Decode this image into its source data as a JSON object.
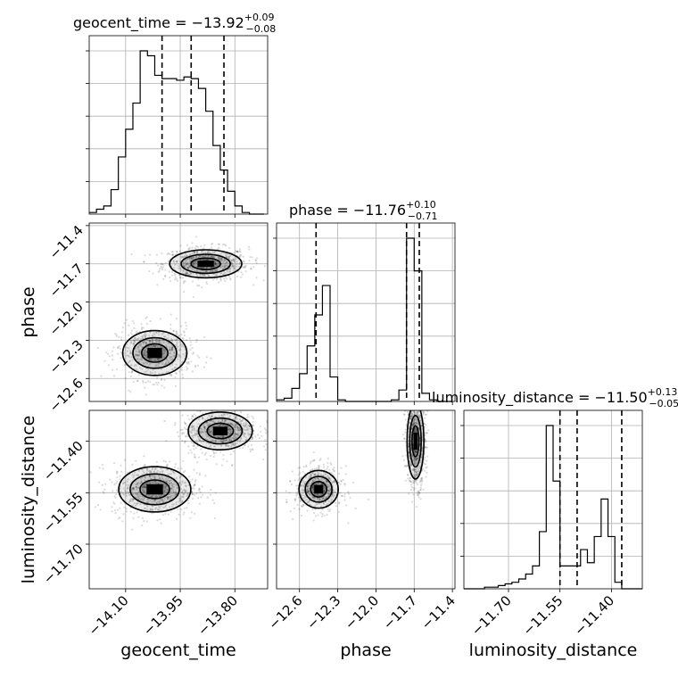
{
  "chart_data": {
    "type": "corner",
    "parameters": [
      "geocent_time",
      "phase",
      "luminosity_distance"
    ],
    "titles": [
      {
        "param": "geocent_time",
        "text": "geocent_time = −13.92",
        "plus": "+0.09",
        "minus": "−0.08"
      },
      {
        "param": "phase",
        "text": "phase = −11.76",
        "plus": "+0.10",
        "minus": "−0.71"
      },
      {
        "param": "luminosity_distance",
        "text": "luminosity_distance = −11.50",
        "plus": "+0.13",
        "minus": "−0.05"
      }
    ],
    "axes": {
      "geocent_time": {
        "range": [
          -14.2,
          -13.71
        ],
        "ticks": [
          -14.1,
          -13.95,
          -13.8
        ],
        "tick_labels": [
          "−14.10",
          "−13.95",
          "−13.80"
        ],
        "label": "geocent_time"
      },
      "phase": {
        "range": [
          -12.78,
          -11.38
        ],
        "ticks": [
          -12.6,
          -12.3,
          -12.0,
          -11.7,
          -11.4
        ],
        "tick_labels": [
          "−12.6",
          "−12.3",
          "−12.0",
          "−11.7",
          "−11.4"
        ],
        "label": "phase"
      },
      "luminosity_distance": {
        "range": [
          -11.83,
          -11.31
        ],
        "ticks": [
          -11.7,
          -11.55,
          -11.4
        ],
        "tick_labels": [
          "−11.70",
          "−11.55",
          "−11.40"
        ],
        "label": "luminosity_distance"
      }
    },
    "y_axes": {
      "phase": {
        "ticks": [
          -12.6,
          -12.3,
          -12.0,
          -11.7,
          -11.4
        ],
        "tick_labels": [
          "−12.6",
          "−12.3",
          "−12.0",
          "−11.7",
          "−11.4"
        ],
        "label": "phase"
      },
      "luminosity_distance": {
        "ticks": [
          -11.7,
          -11.55,
          -11.4
        ],
        "tick_labels": [
          "−11.70",
          "−11.55",
          "−11.40"
        ],
        "label": "luminosity_distance"
      }
    },
    "histograms": {
      "geocent_time": {
        "edges": [
          -14.2,
          -14.18,
          -14.16,
          -14.14,
          -14.12,
          -14.1,
          -14.08,
          -14.06,
          -14.04,
          -14.02,
          -14.0,
          -13.98,
          -13.96,
          -13.94,
          -13.92,
          -13.9,
          -13.88,
          -13.86,
          -13.84,
          -13.82,
          -13.8,
          -13.78,
          -13.76,
          -13.74,
          -13.72
        ],
        "counts": [
          1,
          3,
          5,
          15,
          35,
          52,
          68,
          100,
          97,
          85,
          83,
          83,
          82,
          84,
          83,
          77,
          63,
          42,
          27,
          14,
          5,
          1,
          0,
          0
        ],
        "quantiles": [
          -14.0,
          -13.92,
          -13.83
        ]
      },
      "phase": {
        "edges": [
          -12.78,
          -12.72,
          -12.66,
          -12.6,
          -12.54,
          -12.48,
          -12.42,
          -12.36,
          -12.3,
          -12.24,
          -12.18,
          -12.12,
          -12.06,
          -12.0,
          -11.94,
          -11.88,
          -11.82,
          -11.76,
          -11.7,
          -11.64,
          -11.58,
          -11.52,
          -11.46,
          -11.4
        ],
        "counts": [
          1,
          2,
          8,
          17,
          34,
          53,
          71,
          15,
          1,
          0,
          0,
          0,
          0,
          0,
          0,
          1,
          7,
          100,
          80,
          5,
          1,
          0,
          0
        ],
        "quantiles": [
          -12.47,
          -11.76,
          -11.66
        ]
      },
      "luminosity_distance": {
        "edges": [
          -11.83,
          -11.81,
          -11.79,
          -11.77,
          -11.75,
          -11.73,
          -11.71,
          -11.69,
          -11.67,
          -11.65,
          -11.63,
          -11.61,
          -11.59,
          -11.57,
          -11.55,
          -11.53,
          -11.51,
          -11.49,
          -11.47,
          -11.45,
          -11.43,
          -11.41,
          -11.39,
          -11.37,
          -11.35,
          -11.33,
          -11.31
        ],
        "counts": [
          0,
          0,
          0,
          1,
          1,
          2,
          3,
          4,
          6,
          9,
          14,
          35,
          100,
          66,
          14,
          14,
          14,
          24,
          16,
          32,
          55,
          32,
          4,
          0,
          0,
          0
        ],
        "quantiles": [
          -11.55,
          -11.5,
          -11.37
        ]
      }
    },
    "joint": {
      "phase_vs_geocent_time": {
        "modes": [
          {
            "x": -13.88,
            "y": -11.7,
            "sx": 0.045,
            "sy": 0.05,
            "weight": 0.55
          },
          {
            "x": -14.02,
            "y": -12.4,
            "sx": 0.04,
            "sy": 0.08,
            "weight": 0.45
          }
        ]
      },
      "luminosity_distance_vs_geocent_time": {
        "modes": [
          {
            "x": -14.02,
            "y": -11.54,
            "sx": 0.045,
            "sy": 0.03,
            "weight": 0.5
          },
          {
            "x": -13.84,
            "y": -11.37,
            "sx": 0.04,
            "sy": 0.025,
            "weight": 0.5
          }
        ]
      },
      "luminosity_distance_vs_phase": {
        "modes": [
          {
            "x": -12.45,
            "y": -11.54,
            "sx": 0.07,
            "sy": 0.025,
            "weight": 0.45
          },
          {
            "x": -11.69,
            "y": -11.4,
            "sx": 0.03,
            "sy": 0.05,
            "weight": 0.55
          }
        ]
      }
    },
    "grid": true
  }
}
